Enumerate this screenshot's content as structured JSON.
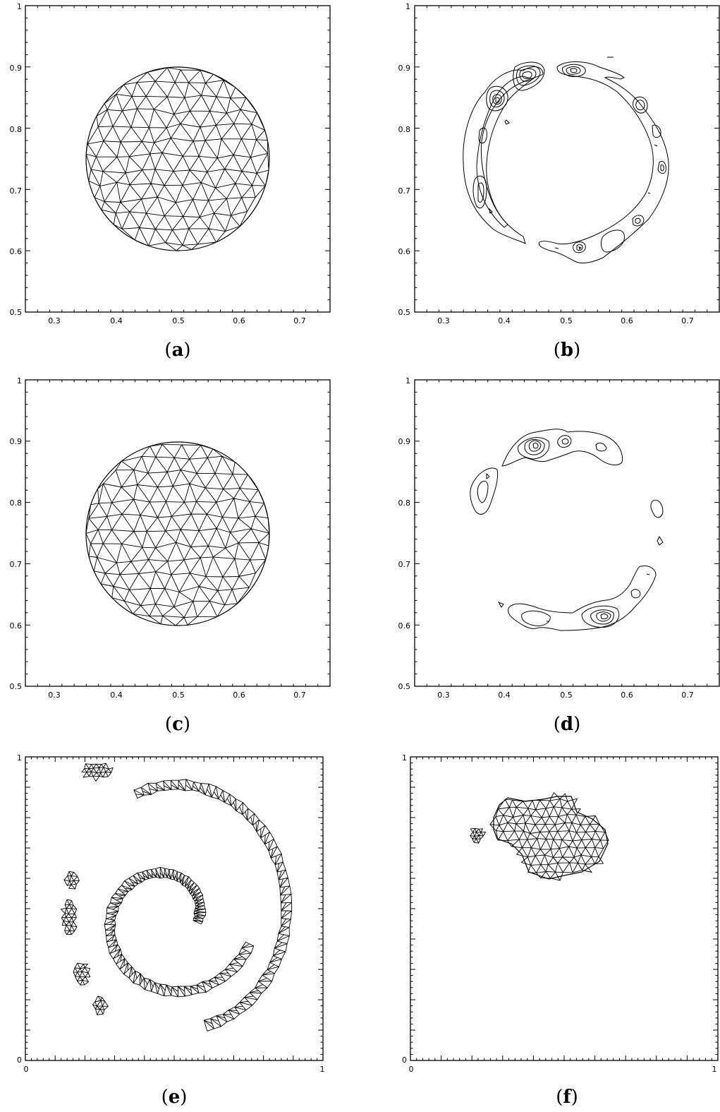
{
  "figure": {
    "panels": [
      {
        "id": "a",
        "caption": "a",
        "kind": "mesh-disk",
        "xticks": [
          "0.3",
          "0.4",
          "0.5",
          "0.6",
          "0.7"
        ],
        "yticks": [
          "0.5",
          "0.6",
          "0.7",
          "0.8",
          "0.9",
          "1"
        ]
      },
      {
        "id": "b",
        "caption": "b",
        "kind": "contour-ring",
        "xticks": [
          "0.3",
          "0.4",
          "0.5",
          "0.6",
          "0.7"
        ],
        "yticks": [
          "0.5",
          "0.6",
          "0.7",
          "0.8",
          "0.9",
          "1"
        ]
      },
      {
        "id": "c",
        "caption": "c",
        "kind": "mesh-disk",
        "xticks": [
          "0.3",
          "0.4",
          "0.5",
          "0.6",
          "0.7"
        ],
        "yticks": [
          "0.5",
          "0.6",
          "0.7",
          "0.8",
          "0.9",
          "1"
        ]
      },
      {
        "id": "d",
        "caption": "d",
        "kind": "contour-arcs",
        "xticks": [
          "0.3",
          "0.4",
          "0.5",
          "0.6",
          "0.7"
        ],
        "yticks": [
          "0.5",
          "0.6",
          "0.7",
          "0.8",
          "0.9",
          "1"
        ]
      },
      {
        "id": "e",
        "caption": "e",
        "kind": "mesh-spiral",
        "xticks": [
          "0",
          "1"
        ],
        "yticks": [
          "0",
          "1"
        ]
      },
      {
        "id": "f",
        "caption": "f",
        "kind": "mesh-blob",
        "xticks": [
          "0",
          "1"
        ],
        "yticks": [
          "0",
          "1"
        ]
      }
    ]
  }
}
